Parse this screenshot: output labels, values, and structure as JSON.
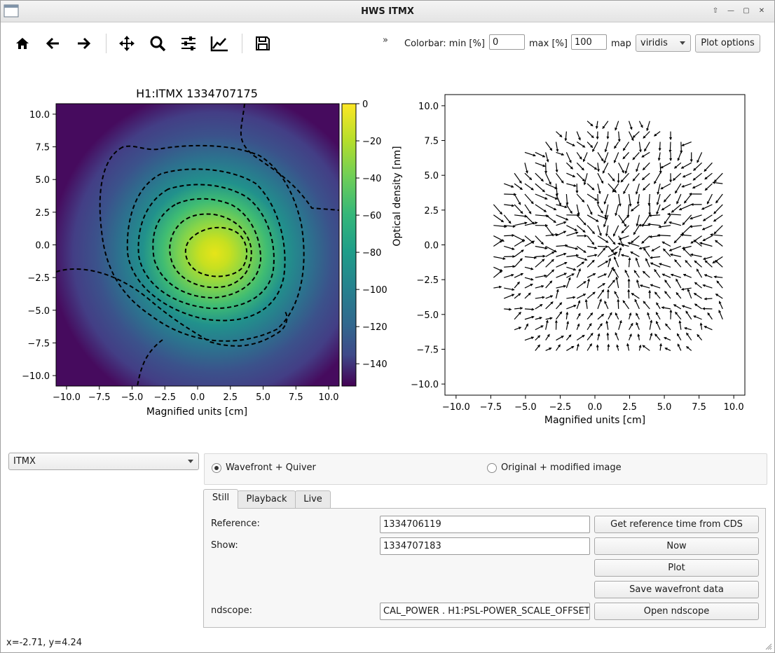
{
  "window": {
    "title": "HWS ITMX"
  },
  "toolbar": {
    "buttons": [
      "home-icon",
      "back-arrow-icon",
      "forward-arrow-icon",
      "pan-icon",
      "zoom-icon",
      "configure-subplots-icon",
      "edit-axis-icon",
      "save-icon"
    ],
    "overflow": "»",
    "colorbar_min_label": "Colorbar: min [%]",
    "colorbar_min_value": "0",
    "colorbar_max_label": "max [%]",
    "colorbar_max_value": "100",
    "map_label": "map",
    "map_value": "viridis",
    "plot_options_label": "Plot options"
  },
  "left_plot": {
    "title": "H1:ITMX 1334707175",
    "xlabel": "Magnified units [cm]",
    "colorbar_label": "Optical density [nm]",
    "xticks": [
      "−10.0",
      "−7.5",
      "−5.0",
      "−2.5",
      "0.0",
      "2.5",
      "5.0",
      "7.5",
      "10.0"
    ],
    "yticks": [
      "10.0",
      "7.5",
      "5.0",
      "2.5",
      "0.0",
      "−2.5",
      "−5.0",
      "−7.5",
      "−10.0"
    ],
    "colorbar_ticks": [
      "0",
      "−20",
      "−40",
      "−60",
      "−80",
      "−100",
      "−120",
      "−140"
    ]
  },
  "right_plot": {
    "xlabel": "Magnified units [cm]",
    "xticks": [
      "−10.0",
      "−7.5",
      "−5.0",
      "−2.5",
      "0.0",
      "2.5",
      "5.0",
      "7.5",
      "10.0"
    ],
    "yticks": [
      "10.0",
      "7.5",
      "5.0",
      "2.5",
      "0.0",
      "−2.5",
      "−5.0",
      "−7.5",
      "−10.0"
    ]
  },
  "chart_data": [
    {
      "type": "heatmap",
      "title": "H1:ITMX 1334707175",
      "xlabel": "Magnified units [cm]",
      "ylabel": "",
      "xlim": [
        -10.8,
        10.8
      ],
      "ylim": [
        -10.8,
        10.8
      ],
      "colormap": "viridis",
      "colorbar": {
        "label": "Optical density [nm]",
        "range": [
          -152,
          0
        ]
      },
      "peak": {
        "x": 1.3,
        "y": -0.5,
        "value": 0
      },
      "contours": "dashed black"
    },
    {
      "type": "scatter",
      "subtype": "quiver",
      "xlabel": "Magnified units [cm]",
      "xlim": [
        -10.8,
        10.8
      ],
      "ylim": [
        -10.8,
        10.8
      ],
      "center": {
        "x": 1.5,
        "y": -0.2
      },
      "radius": 9.5,
      "arrow_color": "#000000"
    }
  ],
  "selector": {
    "value": "ITMX"
  },
  "view_mode": {
    "options": [
      "Wavefront + Quiver",
      "Original + modified image"
    ],
    "selected": 0
  },
  "tabs": [
    "Still",
    "Playback",
    "Live"
  ],
  "still": {
    "reference_label": "Reference:",
    "reference_value": "1334706119",
    "show_label": "Show:",
    "show_value": "1334707183",
    "ndscope_label": "ndscope:",
    "ndscope_value": "CAL_POWER . H1:PSL-POWER_SCALE_OFFSET",
    "btn_get_reference": "Get reference time from CDS",
    "btn_now": "Now",
    "btn_plot": "Plot",
    "btn_save": "Save wavefront data",
    "btn_open_ndscope": "Open ndscope"
  },
  "status_bar": {
    "text": "x=-2.71, y=4.24"
  }
}
